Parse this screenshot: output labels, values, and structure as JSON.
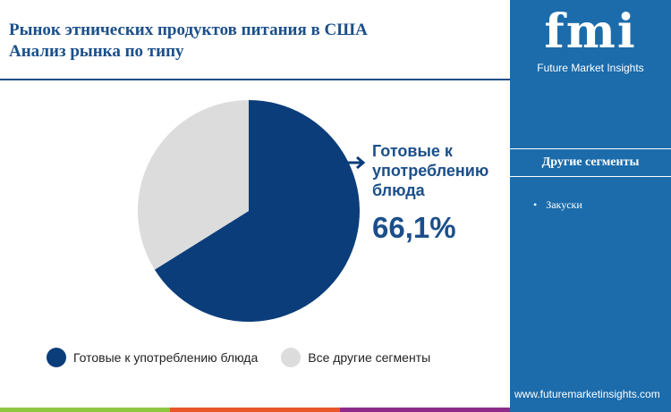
{
  "title": [
    "Рынок этнических продуктов питания в США",
    "Анализ рынка по типу"
  ],
  "logo": {
    "text": "fmi",
    "subtitle": "Future Market Insights"
  },
  "sidebar": {
    "heading": "Другие сегменты",
    "items": [
      "Закуски"
    ],
    "url": "www.futuremarketinsights.com"
  },
  "callout": {
    "label": "Готовые к употреблению блюда",
    "value": "66,1%"
  },
  "colors": {
    "primary": "#0b3d7a",
    "secondary": "#dcdcdc",
    "sidebar": "#1c6cab"
  },
  "chart_data": {
    "type": "pie",
    "title": "Рынок этнических продуктов питания в США — Анализ рынка по типу",
    "categories": [
      "Готовые к употреблению блюда",
      "Все другие сегменты"
    ],
    "values": [
      66.1,
      33.9
    ],
    "legend": "bottom"
  }
}
